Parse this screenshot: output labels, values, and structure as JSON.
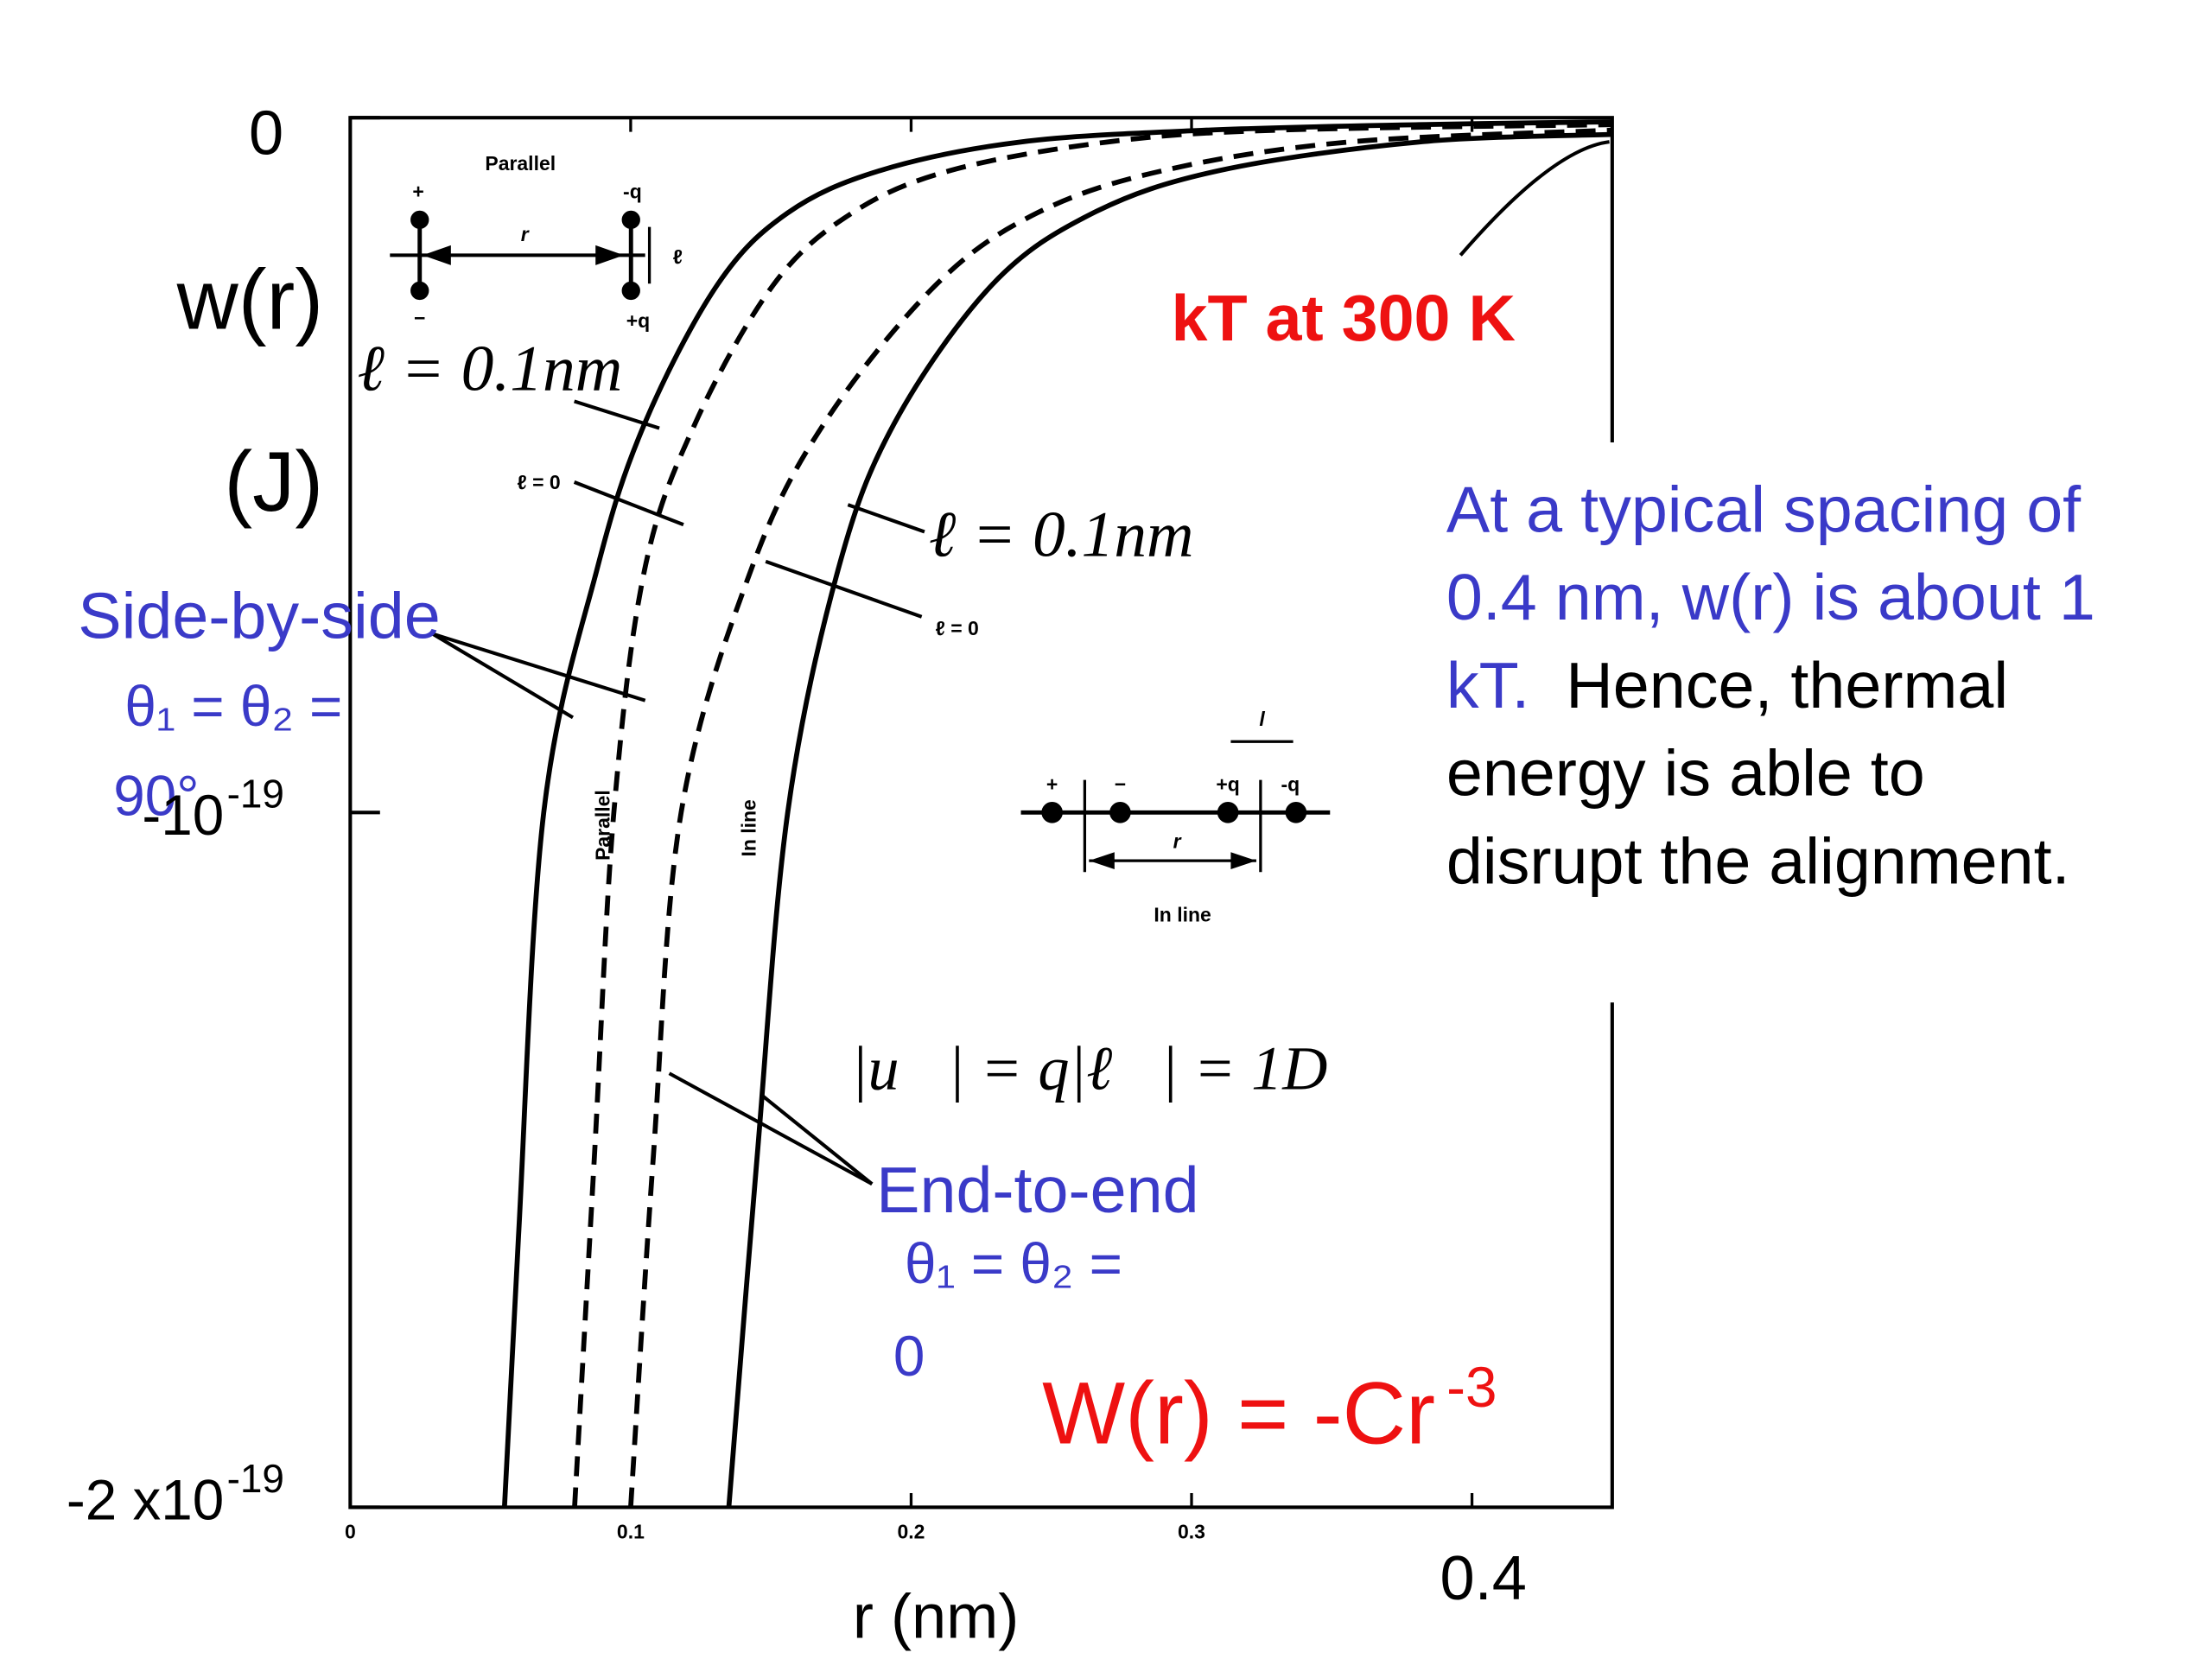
{
  "chart_data": {
    "type": "line",
    "ylabel": [
      "w(r)",
      "(J)"
    ],
    "xlabel": "r (nm)",
    "xlim": [
      0,
      0.45
    ],
    "xticks": [
      0,
      0.1,
      0.2,
      0.3,
      0.4
    ],
    "ylim": [
      -2e-19,
      0
    ],
    "yticks": [
      {
        "value": -2e-19,
        "label": "-2 x10",
        "sup": "-19"
      },
      {
        "value": -1e-19,
        "label": "-10",
        "sup": "-19"
      },
      0
    ],
    "series": [
      {
        "color": "#000000",
        "dash": false,
        "x": [
          0.055,
          0.06,
          0.069,
          0.088,
          0.105,
          0.131,
          0.156,
          0.189,
          0.239,
          0.305,
          0.381,
          0.45
        ],
        "values": [
          -2e-19,
          -1.61e-19,
          -1e-19,
          -6.5e-20,
          -4.4e-20,
          -2.4e-20,
          -1.37e-20,
          -7.6e-21,
          -3.5e-21,
          -1.8e-21,
          -1e-21,
          -6e-22
        ]
      },
      {
        "color": "#000000",
        "dash": true,
        "x": [
          0.08,
          0.087,
          0.094,
          0.105,
          0.123,
          0.151,
          0.179,
          0.214,
          0.27,
          0.33,
          0.45
        ],
        "values": [
          -2e-19,
          -1.5e-19,
          -1e-19,
          -6.5e-20,
          -4.4e-20,
          -2.4e-20,
          -1.37e-20,
          -7.6e-21,
          -3.5e-21,
          -1.8e-21,
          -1e-21
        ]
      },
      {
        "color": "#000000",
        "dash": true,
        "x": [
          0.1,
          0.108,
          0.118,
          0.143,
          0.169,
          0.209,
          0.245,
          0.29,
          0.356,
          0.45
        ],
        "values": [
          -2e-19,
          -1.5e-19,
          -1e-19,
          -6.5e-20,
          -4.4e-20,
          -2.4e-20,
          -1.37e-20,
          -7.6e-21,
          -3.5e-21,
          -1.8e-21
        ]
      },
      {
        "color": "#000000",
        "dash": false,
        "x": [
          0.135,
          0.145,
          0.156,
          0.174,
          0.194,
          0.229,
          0.265,
          0.31,
          0.381,
          0.45
        ],
        "values": [
          -2e-19,
          -1.5e-19,
          -1e-19,
          -6.5e-20,
          -4.4e-20,
          -2.4e-20,
          -1.37e-20,
          -7.6e-21,
          -3.5e-21,
          -2.4e-21
        ]
      }
    ],
    "annotations": {
      "kt": "kT at 300 K",
      "note_blue": "At a typical spacing of 0.4 nm, w(r) is about 1 kT.",
      "note_black": "Hence, thermal energy is able to disrupt the alignment.",
      "formula": "W(r) = -Cr",
      "formula_sup": "-3",
      "side_by_side": "Side-by-side",
      "side_angle": [
        "θ₁ = θ₂ =",
        "90°"
      ],
      "end_to_end": "End-to-end",
      "end_angle": [
        "θ₁ = θ₂ =",
        "0"
      ],
      "l_parallel": "ℓ = 0.1nm",
      "l_inline": "ℓ = 0.1nm",
      "dipole": "|u⃗| = q|ℓ⃗| = 1D",
      "scan_labels": [
        "Parallel",
        "ℓ = 0",
        "ℓ = 0",
        "Parallel",
        "In line",
        "In line"
      ],
      "parallel_diagram": [
        "+",
        "-q",
        "r",
        "ℓ",
        "−",
        "+q"
      ],
      "inline_diagram": [
        "+",
        "−",
        "+q",
        "-q",
        "r",
        "l"
      ]
    }
  }
}
